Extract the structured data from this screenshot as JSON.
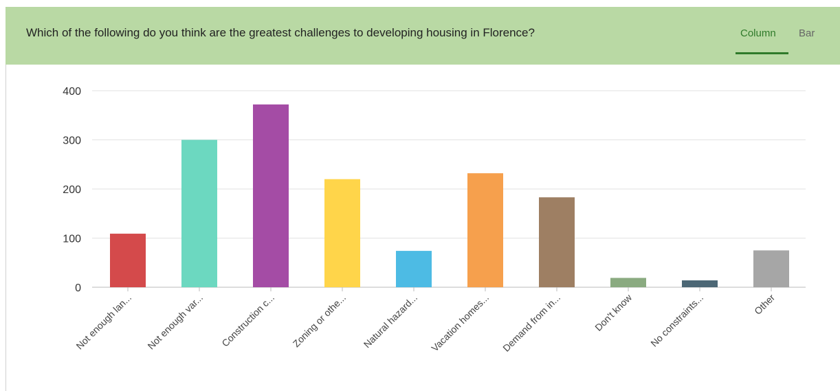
{
  "header": {
    "question": "Which of the following do you think are the greatest challenges to developing housing in Florence?",
    "tabs": [
      "Column",
      "Bar"
    ],
    "active_tab": "Column",
    "background_color": "#b9d9a4",
    "accent_color": "#2f7a2a"
  },
  "chart_data": {
    "type": "bar",
    "categories": [
      "Not enough lan...",
      "Not enough var...",
      "Construction c...",
      "Zoning or othe...",
      "Natural hazard...",
      "Vacation homes...",
      "Demand from in...",
      "Don't know",
      "No constraints...",
      "Other"
    ],
    "values": [
      109,
      300,
      372,
      220,
      74,
      232,
      183,
      19,
      14,
      75
    ],
    "colors": [
      "#d44a4b",
      "#6cd8c0",
      "#a44ca5",
      "#ffd54a",
      "#4dbbe4",
      "#f6a04d",
      "#9e7f63",
      "#8aaa80",
      "#4c6775",
      "#a6a6a6"
    ],
    "ylim": [
      0,
      400
    ],
    "yticks": [
      0,
      100,
      200,
      300,
      400
    ],
    "grid": true,
    "title": "",
    "xlabel": "",
    "ylabel": ""
  }
}
